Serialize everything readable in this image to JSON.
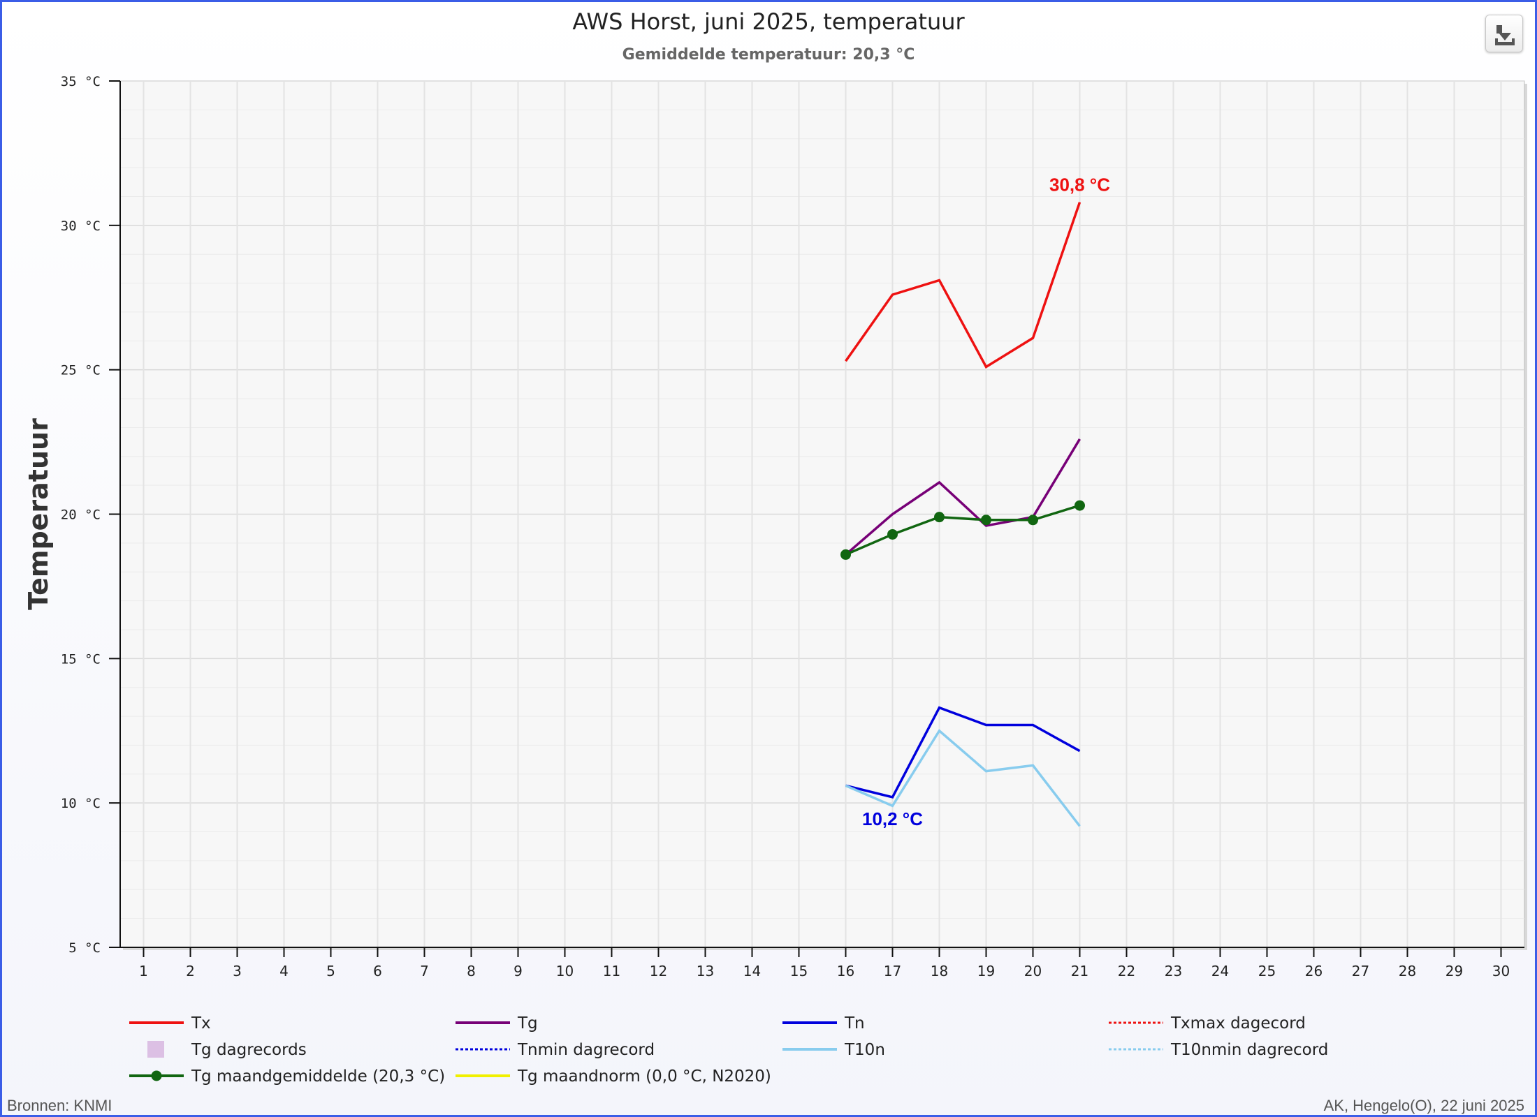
{
  "chart_data": {
    "type": "line",
    "title": "AWS Horst, juni 2025, temperatuur",
    "subtitle": "Gemiddelde temperatuur: 20,3 °C",
    "ylabel": "Temperatuur",
    "xlabel": "",
    "ylim": [
      5,
      35
    ],
    "y_ticks": [
      5,
      10,
      15,
      20,
      25,
      30,
      35
    ],
    "y_tick_labels": [
      "5 °C",
      "10 °C",
      "15 °C",
      "20 °C",
      "25 °C",
      "30 °C",
      "35 °C"
    ],
    "x_ticks": [
      1,
      2,
      3,
      4,
      5,
      6,
      7,
      8,
      9,
      10,
      11,
      12,
      13,
      14,
      15,
      16,
      17,
      18,
      19,
      20,
      21,
      22,
      23,
      24,
      25,
      26,
      27,
      28,
      29,
      30
    ],
    "x_tick_labels": [
      "1",
      "2",
      "3",
      "4",
      "5",
      "6",
      "7",
      "8",
      "9",
      "10",
      "11",
      "12",
      "13",
      "14",
      "15",
      "16",
      "17",
      "18",
      "19",
      "20",
      "21",
      "22",
      "23",
      "24",
      "25",
      "26",
      "27",
      "28",
      "29",
      "30"
    ],
    "grid": true,
    "legend_position": "bottom",
    "series": [
      {
        "name": "Tx",
        "color": "#ee1111",
        "style": "solid",
        "x": [
          16,
          17,
          18,
          19,
          20,
          21
        ],
        "values": [
          25.3,
          27.6,
          28.1,
          25.1,
          26.1,
          30.8
        ]
      },
      {
        "name": "Tg",
        "color": "#770077",
        "style": "solid",
        "x": [
          16,
          17,
          18,
          19,
          20,
          21
        ],
        "values": [
          18.6,
          20.0,
          21.1,
          19.6,
          19.9,
          22.6
        ]
      },
      {
        "name": "Tn",
        "color": "#0000dd",
        "style": "solid",
        "x": [
          16,
          17,
          18,
          19,
          20,
          21
        ],
        "values": [
          10.6,
          10.2,
          13.3,
          12.7,
          12.7,
          11.8
        ]
      },
      {
        "name": "Txmax dagecord",
        "color": "#ee1111",
        "style": "dotted",
        "x": [],
        "values": []
      },
      {
        "name": "Tg dagrecords",
        "color": "#dcc0e4",
        "style": "square",
        "x": [],
        "values": []
      },
      {
        "name": "Tnmin dagrecord",
        "color": "#0000dd",
        "style": "dotted",
        "x": [],
        "values": []
      },
      {
        "name": "T10n",
        "color": "#88ccee",
        "style": "solid",
        "x": [
          16,
          17,
          18,
          19,
          20,
          21
        ],
        "values": [
          10.6,
          9.9,
          12.5,
          11.1,
          11.3,
          9.2
        ]
      },
      {
        "name": "T10nmin dagrecord",
        "color": "#88ccee",
        "style": "dotted",
        "x": [],
        "values": []
      },
      {
        "name": "Tg maandgemiddelde (20,3 °C)",
        "color": "#116611",
        "style": "solid-marker",
        "x": [
          16,
          17,
          18,
          19,
          20,
          21
        ],
        "values": [
          18.6,
          19.3,
          19.9,
          19.8,
          19.8,
          20.3
        ]
      },
      {
        "name": "Tg maandnorm (0,0 °C, N2020)",
        "color": "#f0f000",
        "style": "solid",
        "x": [],
        "values": []
      }
    ],
    "annotations": [
      {
        "text": "30,8 °C",
        "x": 21,
        "y": 30.8,
        "color": "#ee1111",
        "placement": "above"
      },
      {
        "text": "10,2 °C",
        "x": 17,
        "y": 10.2,
        "color": "#0000dd",
        "placement": "below"
      }
    ]
  },
  "footer": {
    "left": "Bronnen: KNMI",
    "right": "AK, Hengelo(O), 22 juni 2025"
  },
  "toolbar": {
    "download_icon": "download-icon"
  }
}
